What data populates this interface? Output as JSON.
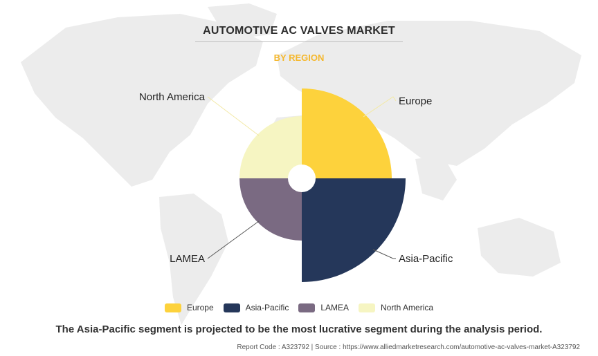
{
  "header": {
    "title": "AUTOMOTIVE AC VALVES MARKET",
    "subtitle": "BY REGION"
  },
  "chart_data": {
    "type": "pie",
    "variant": "polar-area",
    "categories": [
      "Europe",
      "Asia-Pacific",
      "LAMEA",
      "North America"
    ],
    "values": [
      130,
      150,
      90,
      90
    ],
    "colors": [
      "#fdd23c",
      "#25375a",
      "#7a6a82",
      "#f6f5c2"
    ],
    "legend_position": "bottom"
  },
  "legend": {
    "items": [
      {
        "label": "Europe",
        "color": "#fdd23c"
      },
      {
        "label": "Asia-Pacific",
        "color": "#25375a"
      },
      {
        "label": "LAMEA",
        "color": "#7a6a82"
      },
      {
        "label": "North America",
        "color": "#f6f5c2"
      }
    ]
  },
  "caption": "The Asia-Pacific segment is projected to be the most lucrative segment during the analysis period.",
  "footer": "Report Code : A323792  |  Source : https://www.alliedmarketresearch.com/automotive-ac-valves-market-A323792"
}
